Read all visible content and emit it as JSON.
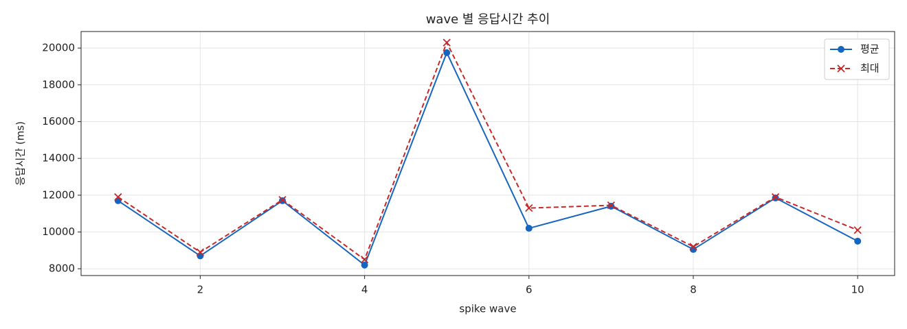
{
  "chart_data": {
    "type": "line",
    "title": "wave 별 응답시간 추이",
    "x_label": "spike wave",
    "y_label": "응답시간 (ms)",
    "x": [
      1,
      2,
      3,
      4,
      5,
      6,
      7,
      8,
      9,
      10
    ],
    "series": [
      {
        "name": "평균",
        "color": "#1565c0",
        "linestyle": "solid",
        "marker": "circle",
        "values": [
          11700,
          8700,
          11700,
          8200,
          19750,
          10200,
          11400,
          9050,
          11850,
          9500
        ]
      },
      {
        "name": "최대",
        "color": "#c62828",
        "linestyle": "dashed",
        "marker": "x",
        "values": [
          11900,
          8900,
          11750,
          8500,
          20300,
          11300,
          11450,
          9200,
          11900,
          10100
        ]
      }
    ],
    "xlim": [
      0.55,
      10.45
    ],
    "ylim": [
      7630,
      20900
    ],
    "xticks": [
      2,
      4,
      6,
      8,
      10
    ],
    "yticks": [
      8000,
      10000,
      12000,
      14000,
      16000,
      18000,
      20000
    ],
    "grid": true,
    "legend": "upper right"
  }
}
